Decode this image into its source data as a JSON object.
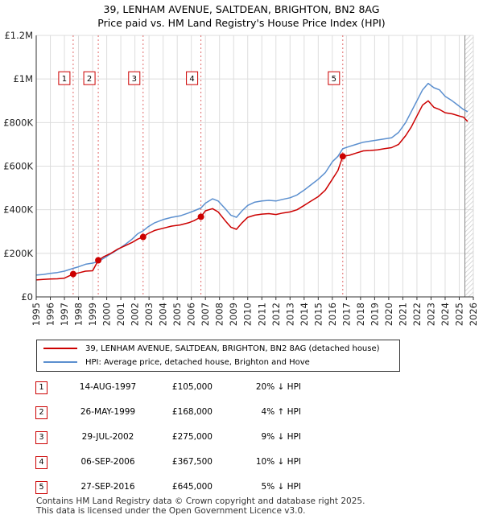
{
  "title": {
    "line1": "39, LENHAM AVENUE, SALTDEAN, BRIGHTON, BN2 8AG",
    "line2": "Price paid vs. HM Land Registry's House Price Index (HPI)"
  },
  "chart_data": {
    "type": "line",
    "title": "39, LENHAM AVENUE, SALTDEAN, BRIGHTON, BN2 8AG — Price paid vs. HM Land Registry's House Price Index (HPI)",
    "xlabel": "",
    "ylabel": "",
    "xlim": [
      1995,
      2026
    ],
    "ylim": [
      0,
      1200000
    ],
    "x_ticks": [
      "1995",
      "1996",
      "1997",
      "1998",
      "1999",
      "2000",
      "2001",
      "2002",
      "2003",
      "2004",
      "2005",
      "2006",
      "2007",
      "2008",
      "2009",
      "2010",
      "2011",
      "2012",
      "2013",
      "2014",
      "2015",
      "2016",
      "2017",
      "2018",
      "2019",
      "2020",
      "2021",
      "2022",
      "2023",
      "2024",
      "2025",
      "2026"
    ],
    "y_ticks": [
      {
        "value": 0,
        "label": "£0"
      },
      {
        "value": 200000,
        "label": "£200K"
      },
      {
        "value": 400000,
        "label": "£400K"
      },
      {
        "value": 600000,
        "label": "£600K"
      },
      {
        "value": 800000,
        "label": "£800K"
      },
      {
        "value": 1000000,
        "label": "£1M"
      },
      {
        "value": 1200000,
        "label": "£1.2M"
      }
    ],
    "grid": true,
    "projection_start": 2025.4,
    "series": [
      {
        "name": "39, LENHAM AVENUE, SALTDEAN, BRIGHTON, BN2 8AG (detached house)",
        "color": "#cc0000",
        "x": [
          1995.0,
          1995.5,
          1996.0,
          1996.5,
          1997.0,
          1997.62,
          1998.0,
          1998.5,
          1999.0,
          1999.4,
          1999.8,
          2000.3,
          2000.8,
          2001.3,
          2001.8,
          2002.2,
          2002.58,
          2002.9,
          2003.4,
          2004.0,
          2004.6,
          2005.2,
          2005.8,
          2006.2,
          2006.68,
          2007.0,
          2007.5,
          2007.9,
          2008.4,
          2008.8,
          2009.2,
          2009.6,
          2010.0,
          2010.5,
          2011.0,
          2011.5,
          2012.0,
          2012.5,
          2013.0,
          2013.5,
          2014.0,
          2014.5,
          2015.0,
          2015.5,
          2016.0,
          2016.4,
          2016.74,
          2017.2,
          2017.7,
          2018.2,
          2018.7,
          2019.2,
          2019.7,
          2020.2,
          2020.7,
          2021.2,
          2021.6,
          2022.0,
          2022.4,
          2022.8,
          2023.2,
          2023.6,
          2024.0,
          2024.5,
          2025.0,
          2025.3,
          2025.6
        ],
        "y": [
          78000,
          80000,
          82000,
          83000,
          86000,
          105000,
          110000,
          118000,
          120000,
          168000,
          185000,
          200000,
          220000,
          235000,
          250000,
          265000,
          275000,
          290000,
          305000,
          315000,
          325000,
          330000,
          340000,
          350000,
          367500,
          395000,
          405000,
          390000,
          350000,
          320000,
          310000,
          340000,
          365000,
          375000,
          380000,
          382000,
          378000,
          385000,
          390000,
          400000,
          420000,
          440000,
          460000,
          490000,
          540000,
          580000,
          645000,
          650000,
          660000,
          670000,
          672000,
          675000,
          680000,
          685000,
          700000,
          740000,
          780000,
          830000,
          880000,
          900000,
          870000,
          860000,
          845000,
          840000,
          830000,
          825000,
          805000
        ]
      },
      {
        "name": "HPI: Average price, detached house, Brighton and Hove",
        "color": "#5b8fcf",
        "x": [
          1995.0,
          1995.5,
          1996.0,
          1996.5,
          1997.0,
          1997.62,
          1998.0,
          1998.5,
          1999.0,
          1999.4,
          1999.8,
          2000.3,
          2000.8,
          2001.3,
          2001.8,
          2002.2,
          2002.58,
          2002.9,
          2003.4,
          2004.0,
          2004.6,
          2005.2,
          2005.8,
          2006.2,
          2006.68,
          2007.0,
          2007.5,
          2007.9,
          2008.4,
          2008.8,
          2009.2,
          2009.6,
          2010.0,
          2010.5,
          2011.0,
          2011.5,
          2012.0,
          2012.5,
          2013.0,
          2013.5,
          2014.0,
          2014.5,
          2015.0,
          2015.5,
          2016.0,
          2016.4,
          2016.74,
          2017.2,
          2017.7,
          2018.2,
          2018.7,
          2019.2,
          2019.7,
          2020.2,
          2020.7,
          2021.2,
          2021.6,
          2022.0,
          2022.4,
          2022.8,
          2023.2,
          2023.6,
          2024.0,
          2024.5,
          2025.0,
          2025.3,
          2025.6
        ],
        "y": [
          100000,
          103000,
          108000,
          112000,
          118000,
          131000,
          138000,
          150000,
          155000,
          162000,
          178000,
          198000,
          218000,
          240000,
          265000,
          290000,
          303000,
          320000,
          340000,
          355000,
          365000,
          372000,
          385000,
          395000,
          408000,
          430000,
          450000,
          440000,
          405000,
          375000,
          365000,
          395000,
          420000,
          435000,
          440000,
          443000,
          440000,
          448000,
          455000,
          468000,
          490000,
          515000,
          540000,
          570000,
          620000,
          645000,
          680000,
          690000,
          700000,
          710000,
          715000,
          720000,
          725000,
          730000,
          755000,
          800000,
          850000,
          900000,
          950000,
          980000,
          960000,
          950000,
          920000,
          900000,
          875000,
          860000,
          850000
        ]
      }
    ],
    "sales": [
      {
        "id": "1",
        "date": "14-AUG-1997",
        "x": 1997.62,
        "price": 105000,
        "price_label": "£105,000",
        "hpi_diff": "20% ↓ HPI"
      },
      {
        "id": "2",
        "date": "26-MAY-1999",
        "x": 1999.4,
        "price": 168000,
        "price_label": "£168,000",
        "hpi_diff": "4% ↑ HPI"
      },
      {
        "id": "3",
        "date": "29-JUL-2002",
        "x": 2002.58,
        "price": 275000,
        "price_label": "£275,000",
        "hpi_diff": "9% ↓ HPI"
      },
      {
        "id": "4",
        "date": "06-SEP-2006",
        "x": 2006.68,
        "price": 367500,
        "price_label": "£367,500",
        "hpi_diff": "10% ↓ HPI"
      },
      {
        "id": "5",
        "date": "27-SEP-2016",
        "x": 2016.74,
        "price": 645000,
        "price_label": "£645,000",
        "hpi_diff": "5% ↓ HPI"
      }
    ]
  },
  "legend": {
    "property_label": "39, LENHAM AVENUE, SALTDEAN, BRIGHTON, BN2 8AG (detached house)",
    "hpi_label": "HPI: Average price, detached house, Brighton and Hove",
    "property_color": "#cc0000",
    "hpi_color": "#5b8fcf"
  },
  "footer": {
    "line1": "Contains HM Land Registry data © Crown copyright and database right 2025.",
    "line2": "This data is licensed under the Open Government Licence v3.0."
  }
}
